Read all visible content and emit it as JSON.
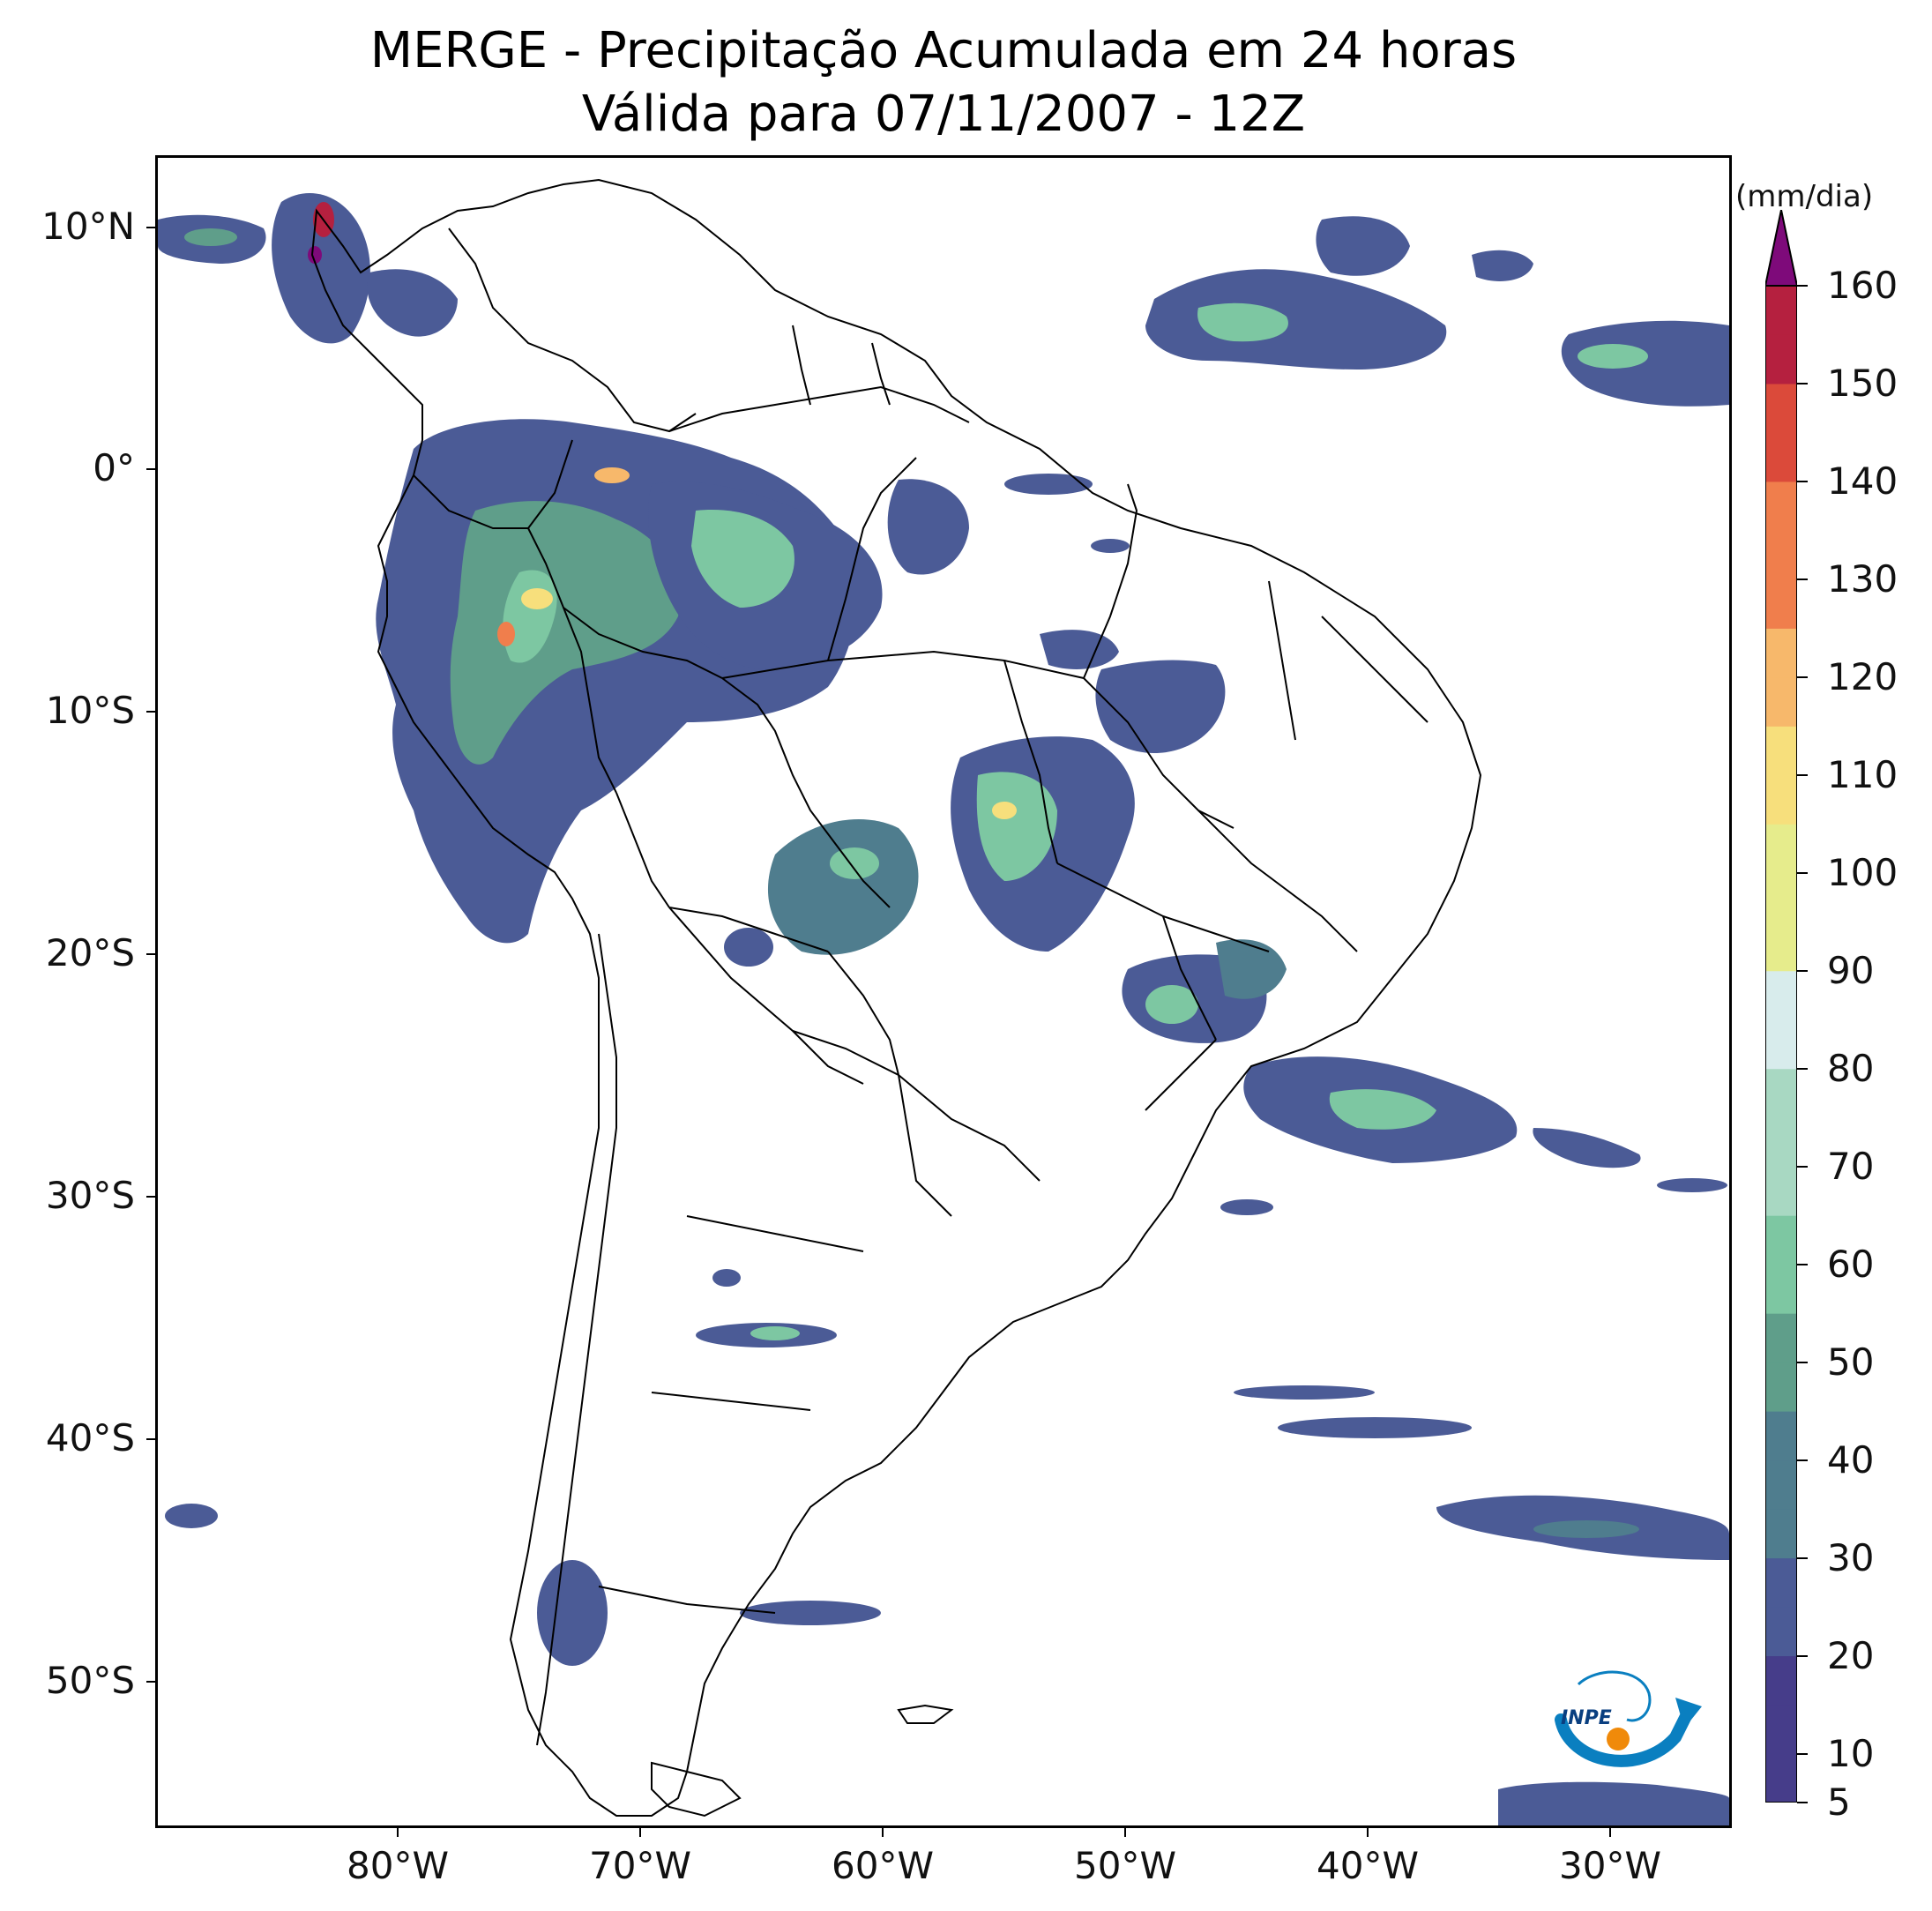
{
  "title": {
    "line1": "MERGE - Precipitação Acumulada em 24 horas",
    "line2": "Válida para 07/11/2007 - 12Z"
  },
  "axes": {
    "y_labels": [
      "10°N",
      "0°",
      "10°S",
      "20°S",
      "30°S",
      "40°S",
      "50°S"
    ],
    "y_values": [
      10,
      0,
      -10,
      -20,
      -30,
      -40,
      -50
    ],
    "x_labels": [
      "80°W",
      "70°W",
      "60°W",
      "50°W",
      "40°W",
      "30°W"
    ],
    "x_values": [
      -80,
      -70,
      -60,
      -50,
      -40,
      -30
    ],
    "lon_range": [
      -90,
      -25
    ],
    "lat_range": [
      -56,
      13
    ]
  },
  "colorbar": {
    "unit": "(mm/dia)",
    "labels": [
      "5",
      "10",
      "20",
      "30",
      "40",
      "50",
      "60",
      "70",
      "80",
      "90",
      "100",
      "110",
      "120",
      "130",
      "140",
      "150",
      "160"
    ],
    "levels": [
      5,
      10,
      20,
      30,
      40,
      50,
      60,
      70,
      80,
      90,
      100,
      110,
      120,
      130,
      140,
      150,
      160
    ],
    "extend": "max",
    "colors": [
      "#463d8a",
      "#4b5b96",
      "#4f7d8e",
      "#5f9e8a",
      "#7dc7a2",
      "#a8d8c2",
      "#d8ecec",
      "#e6ec8c",
      "#f7df7c",
      "#f7b86b",
      "#f07e4c",
      "#db4a3a",
      "#b5203f",
      "#7e0a7a"
    ]
  },
  "logo": {
    "text": "INPE",
    "colors": {
      "blue": "#0a7fc0",
      "orange": "#f08a0a"
    }
  }
}
